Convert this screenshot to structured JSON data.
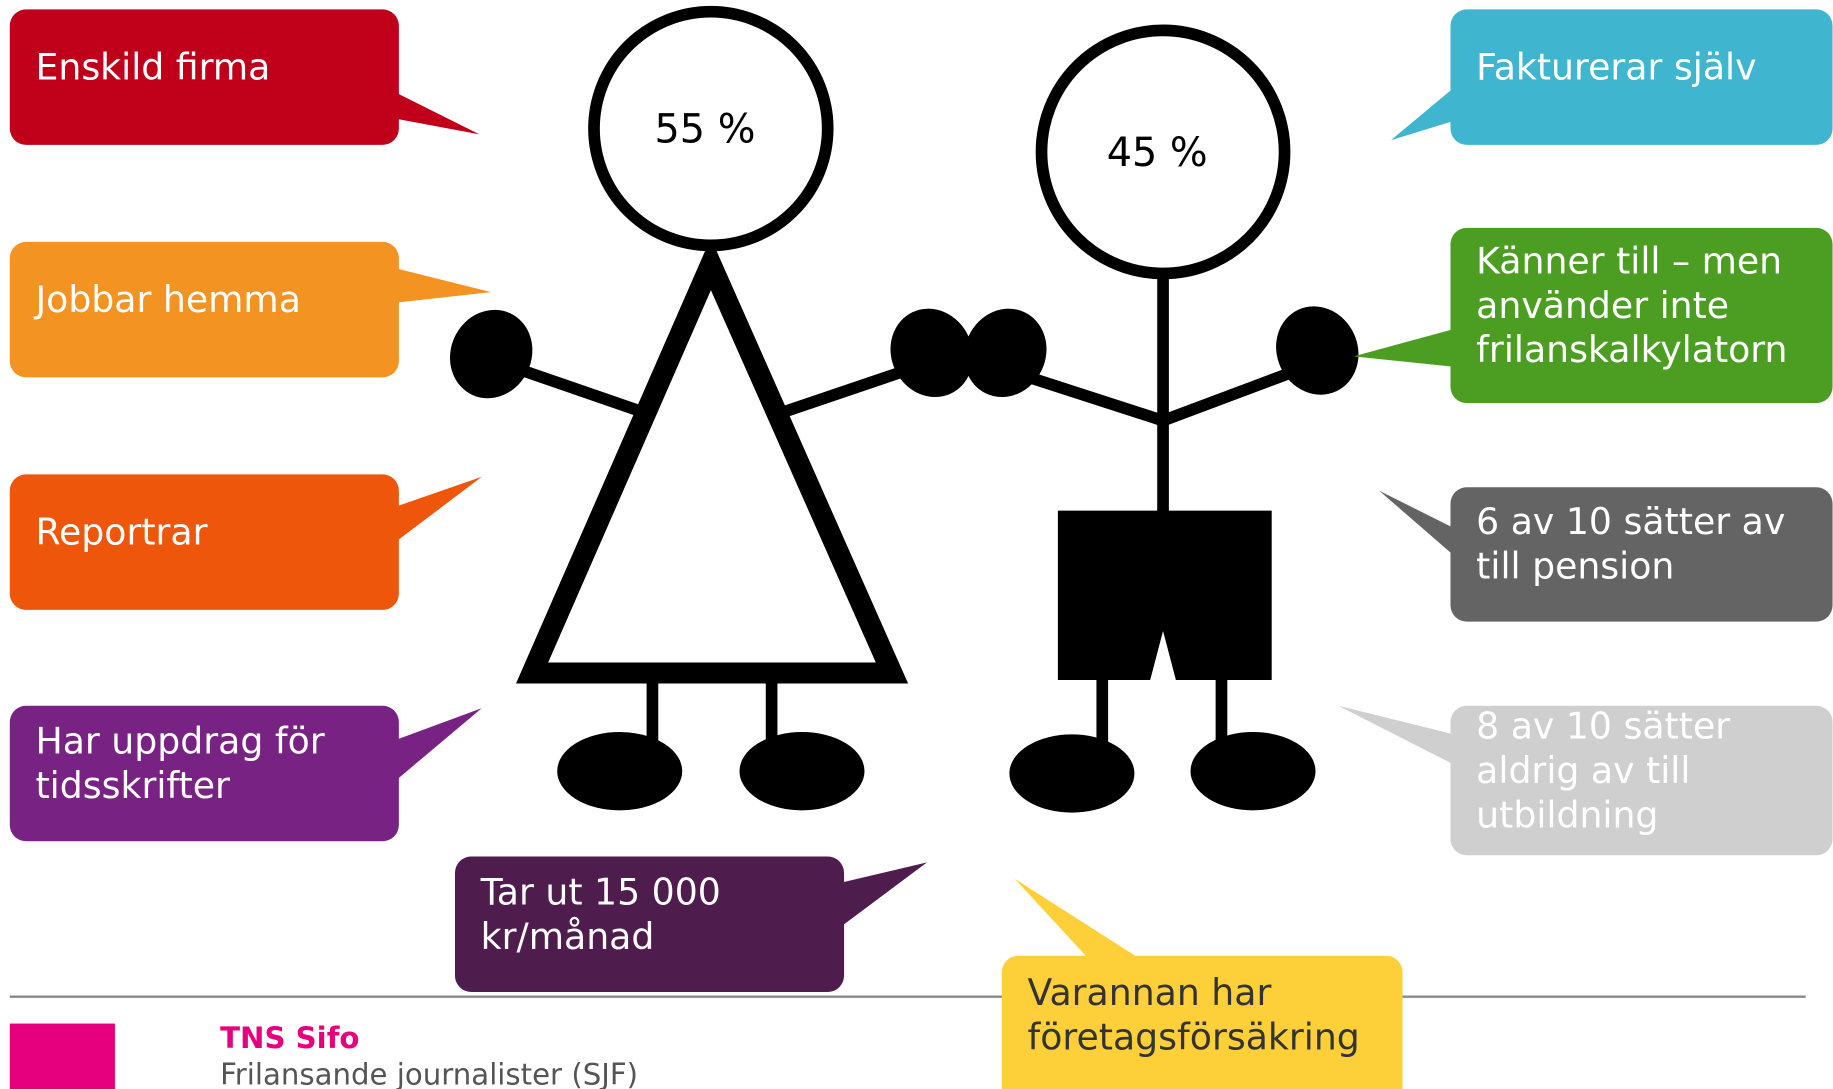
{
  "figures": {
    "woman_share": "55 %",
    "man_share": "45 %"
  },
  "bubbles": [
    {
      "lines": [
        "Enskild firma"
      ],
      "color": "#c0001a"
    },
    {
      "lines": [
        "Jobbar hemma"
      ],
      "color": "#f39322"
    },
    {
      "lines": [
        "Reportrar"
      ],
      "color": "#ee560b"
    },
    {
      "lines": [
        "Har uppdrag för",
        "tidsskrifter"
      ],
      "color": "#782383"
    },
    {
      "lines": [
        "Tar ut 15 000",
        "kr/månad"
      ],
      "color": "#4e1d4e"
    },
    {
      "lines": [
        "Varannan har",
        "företagsförsäkring"
      ],
      "color": "#fdd03a"
    },
    {
      "lines": [
        "Fakturerar själv"
      ],
      "color": "#3fb5cf"
    },
    {
      "lines": [
        "Känner till – men",
        "använder inte",
        "frilanskalkylatorn"
      ],
      "color": "#4c9e22"
    },
    {
      "lines": [
        "6 av 10 sätter av",
        "till pension"
      ],
      "color": "#646464"
    },
    {
      "lines": [
        "8 av 10 sätter",
        "aldrig av till",
        "utbildning"
      ],
      "color": "#cfcfcf"
    }
  ],
  "footer": {
    "brand": "TNS Sifo",
    "subtitle": "Frilansande journalister (SJF)"
  }
}
